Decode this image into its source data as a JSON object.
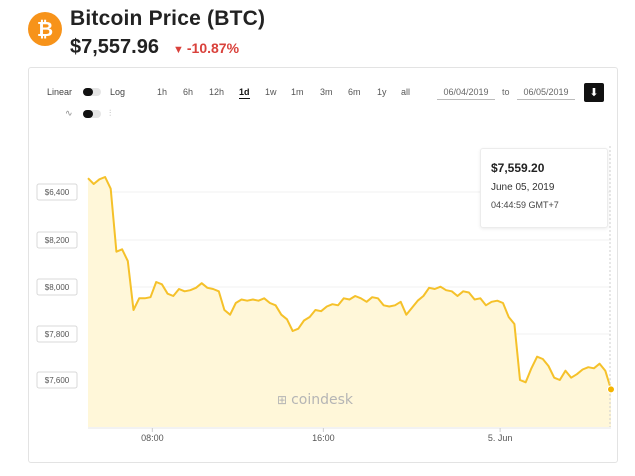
{
  "header": {
    "coin_symbol": "₿",
    "title": "Bitcoin Price",
    "ticker": "(BTC)",
    "price": "$7,557.96",
    "change_arrow": "▼",
    "change": "-10.87%"
  },
  "toolbar": {
    "linear_label": "Linear",
    "log_label": "Log",
    "ranges": [
      "1h",
      "6h",
      "12h",
      "1d",
      "1w",
      "1m",
      "3m",
      "6m",
      "1y",
      "all"
    ],
    "active_range": "1d",
    "date_from": "06/04/2019",
    "to_label": "to",
    "date_to": "06/05/2019",
    "line_icon": "line-chart-icon",
    "candle_icon": "candlestick-icon",
    "download_icon": "download-icon"
  },
  "tooltip": {
    "price": "$7,559.20",
    "date": "June 05, 2019",
    "time": "04:44:59 GMT+7"
  },
  "watermark": "coindesk",
  "colors": {
    "line": "#f5c12a",
    "area": "#fff7d9",
    "negative": "#d9413b",
    "brand": "#f7931a"
  },
  "chart_data": {
    "type": "area",
    "ylim": [
      7510,
      6490
    ],
    "y_ticks": [
      6400,
      8200,
      8000,
      7800,
      7600
    ],
    "y_tick_labels": [
      "$6,400",
      "$8,200",
      "$8,000",
      "$7,800",
      "$7,600"
    ],
    "x_tick_labels": [
      "08:00",
      "16:00",
      "5. Jun"
    ],
    "x_tick_positions": [
      0.123,
      0.45,
      0.788
    ],
    "grid": true,
    "series": [
      {
        "values": [
          8465,
          8440,
          8460,
          8470,
          8420,
          8150,
          8160,
          8110,
          7900,
          7950,
          7950,
          7955,
          8020,
          8010,
          7970,
          7960,
          7990,
          7980,
          7985,
          7995,
          8015,
          7995,
          7990,
          7980,
          7900,
          7880,
          7930,
          7945,
          7940,
          7945,
          7940,
          7950,
          7930,
          7920,
          7880,
          7860,
          7810,
          7820,
          7855,
          7870,
          7900,
          7895,
          7915,
          7925,
          7920,
          7950,
          7945,
          7960,
          7950,
          7935,
          7955,
          7950,
          7920,
          7915,
          7920,
          7935,
          7880,
          7910,
          7940,
          7960,
          7995,
          7990,
          8000,
          7985,
          7980,
          7960,
          7980,
          7975,
          7945,
          7950,
          7920,
          7935,
          7940,
          7930,
          7870,
          7840,
          7600,
          7590,
          7650,
          7700,
          7690,
          7660,
          7610,
          7600,
          7640,
          7610,
          7625,
          7645,
          7655,
          7650,
          7670,
          7640,
          7560
        ]
      }
    ]
  }
}
